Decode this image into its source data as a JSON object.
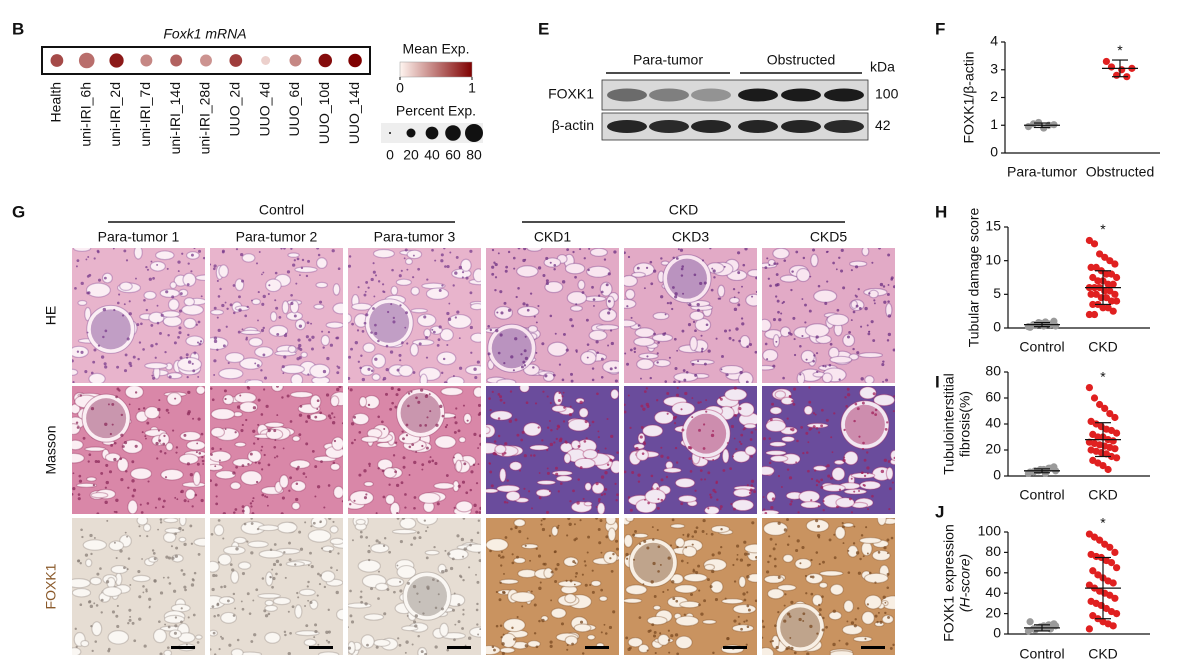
{
  "chart_data": [
    {
      "type": "dot",
      "panel": "B",
      "title": "Foxk1 mRNA",
      "categories": [
        "Health",
        "uni-IRI_6h",
        "uni-IRI_2d",
        "uni-IRI_7d",
        "uni-IRI_14d",
        "uni-IRI_28d",
        "UUO_2d",
        "UUO_4d",
        "UUO_6d",
        "UUO_10d",
        "UUO_14d"
      ],
      "series": [
        {
          "name": "Mean Exp.",
          "values": [
            0.7,
            0.55,
            0.9,
            0.45,
            0.6,
            0.4,
            0.75,
            0.15,
            0.45,
            0.95,
            1.0
          ]
        },
        {
          "name": "Percent Exp.",
          "values": [
            40,
            60,
            50,
            35,
            35,
            35,
            40,
            20,
            35,
            45,
            45
          ]
        }
      ],
      "colors": [
        "#fff5f0",
        "#7f0000"
      ],
      "color_lim": [
        0,
        1
      ],
      "color_ticks": [
        0,
        1
      ],
      "size_ticks": [
        0,
        20,
        40,
        60,
        80
      ]
    },
    {
      "type": "strip",
      "panel": "F",
      "ylabel": "FOXK1/β-actin",
      "annotation": "*",
      "categories": [
        "Para-tumor",
        "Obstructed"
      ],
      "ylim": [
        0,
        4
      ],
      "yticks": [
        0,
        1,
        2,
        3,
        4
      ],
      "series": [
        {
          "color": "#9a9a9a",
          "values": [
            0.95,
            1.05,
            1.1,
            0.9,
            1.0,
            1.02
          ],
          "mean": 1.0,
          "sd": 0.08
        },
        {
          "color": "#e02020",
          "values": [
            3.3,
            3.1,
            2.8,
            3.0,
            2.75,
            3.05
          ],
          "mean": 3.05,
          "sd": 0.3
        }
      ]
    },
    {
      "type": "strip",
      "panel": "H",
      "ylabel": "Tubular damage score",
      "annotation": "*",
      "categories": [
        "Control",
        "CKD"
      ],
      "ylim": [
        0,
        15
      ],
      "yticks": [
        0,
        5,
        10,
        15
      ],
      "series": [
        {
          "color": "#9a9a9a",
          "values": [
            0.2,
            0.5,
            0.8,
            0.3,
            0.6,
            1.0,
            0.1,
            0.4,
            0.7,
            0.9,
            0.5,
            0.3
          ],
          "mean": 0.5,
          "sd": 0.3
        },
        {
          "color": "#e02020",
          "values": [
            13,
            12.5,
            11,
            10.5,
            10,
            9.5,
            9,
            9,
            8.5,
            8,
            8,
            7.5,
            7.5,
            7,
            7,
            6.5,
            6.5,
            6,
            6,
            6,
            5.5,
            5.5,
            5,
            5,
            5,
            4.5,
            4.5,
            4,
            4,
            3.5,
            3.5,
            3,
            3,
            2.5,
            2,
            2
          ],
          "mean": 6,
          "sd": 2.5
        }
      ]
    },
    {
      "type": "strip",
      "panel": "I",
      "ylabel": [
        "Tubulointerstitial",
        "fibrosis(%)"
      ],
      "annotation": "*",
      "categories": [
        "Control",
        "CKD"
      ],
      "ylim": [
        0,
        80
      ],
      "yticks": [
        0,
        20,
        40,
        60,
        80
      ],
      "series": [
        {
          "color": "#9a9a9a",
          "values": [
            2,
            3,
            4,
            5,
            6,
            7,
            3,
            4,
            5,
            2,
            6,
            4
          ],
          "mean": 4,
          "sd": 1.5
        },
        {
          "color": "#e02020",
          "values": [
            68,
            60,
            55,
            52,
            48,
            45,
            42,
            40,
            38,
            36,
            35,
            33,
            32,
            30,
            30,
            28,
            27,
            26,
            25,
            24,
            23,
            22,
            21,
            20,
            19,
            18,
            17,
            15,
            14,
            12,
            10,
            8,
            5
          ],
          "mean": 28,
          "sd": 13
        }
      ]
    },
    {
      "type": "strip",
      "panel": "J",
      "ylabel": [
        "FOXK1 expression",
        "(H-score)"
      ],
      "annotation": "*",
      "categories": [
        "Control",
        "CKD"
      ],
      "ylim": [
        0,
        100
      ],
      "yticks": [
        0,
        20,
        40,
        60,
        80,
        100
      ],
      "series": [
        {
          "color": "#9a9a9a",
          "values": [
            3,
            5,
            6,
            8,
            9,
            10,
            12,
            4,
            7,
            6,
            5,
            8
          ],
          "mean": 6,
          "sd": 3
        },
        {
          "color": "#e02020",
          "values": [
            98,
            95,
            92,
            88,
            85,
            80,
            78,
            76,
            75,
            72,
            70,
            65,
            62,
            58,
            55,
            52,
            50,
            48,
            45,
            42,
            40,
            38,
            35,
            32,
            30,
            28,
            25,
            22,
            20,
            18,
            15,
            12,
            10,
            8,
            5
          ],
          "mean": 45,
          "sd": 30
        }
      ]
    }
  ],
  "blot": {
    "panel": "E",
    "groups": [
      "Para-tumor",
      "Obstructed"
    ],
    "unit": "kDa",
    "rows": [
      {
        "name": "FOXK1",
        "size": 100
      },
      {
        "name": "β-actin",
        "size": 42
      }
    ]
  },
  "histology": {
    "panel": "G",
    "groups": [
      {
        "name": "Control",
        "columns": [
          "Para-tumor 1",
          "Para-tumor 2",
          "Para-tumor 3"
        ]
      },
      {
        "name": "CKD",
        "columns": [
          "CKD1",
          "CKD3",
          "CKD5"
        ]
      }
    ],
    "rows": [
      "HE",
      "Masson",
      "FOXK1"
    ]
  }
}
